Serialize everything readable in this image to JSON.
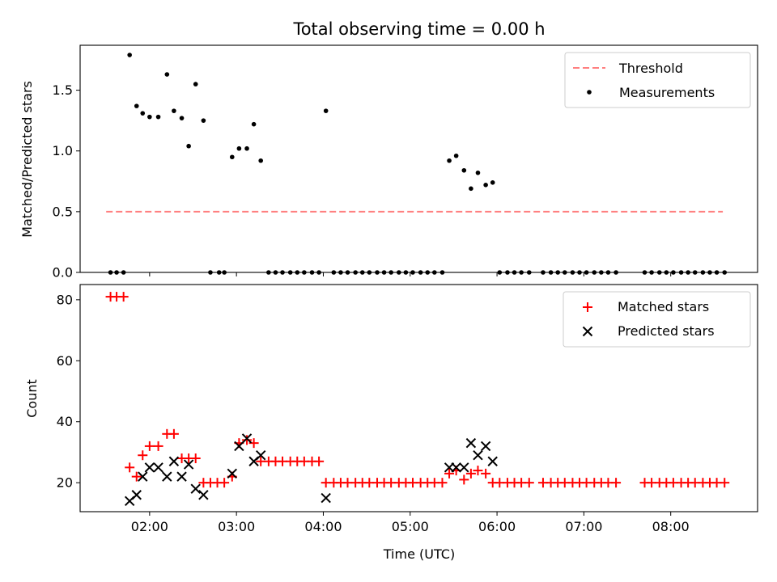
{
  "chart_data": [
    {
      "type": "scatter",
      "title": "Total observing time = 0.00 h",
      "xlabel": "",
      "ylabel": "Matched/Predicted stars",
      "xlim": [
        1.2,
        9.0
      ],
      "ylim": [
        0.0,
        1.87
      ],
      "y_ticks": [
        0.0,
        0.5,
        1.0,
        1.5
      ],
      "y_tick_labels": [
        "0.0",
        "0.5",
        "1.0",
        "1.5"
      ],
      "legend_position": "top-right",
      "colors": {
        "threshold": "#ff7f7f",
        "measurements": "#000000"
      },
      "series": [
        {
          "name": "Threshold",
          "style": "dashed-line",
          "x": [
            1.5,
            8.6
          ],
          "y": [
            0.5,
            0.5
          ]
        },
        {
          "name": "Measurements",
          "style": "dot",
          "points": [
            [
              1.55,
              0.0
            ],
            [
              1.62,
              0.0
            ],
            [
              1.7,
              0.0
            ],
            [
              1.77,
              1.79
            ],
            [
              1.85,
              1.37
            ],
            [
              1.92,
              1.31
            ],
            [
              2.0,
              1.28
            ],
            [
              2.1,
              1.28
            ],
            [
              2.2,
              1.63
            ],
            [
              2.28,
              1.33
            ],
            [
              2.37,
              1.27
            ],
            [
              2.45,
              1.04
            ],
            [
              2.53,
              1.55
            ],
            [
              2.62,
              1.25
            ],
            [
              2.7,
              0.0
            ],
            [
              2.8,
              0.0
            ],
            [
              2.86,
              0.0
            ],
            [
              2.95,
              0.95
            ],
            [
              3.03,
              1.02
            ],
            [
              3.12,
              1.02
            ],
            [
              3.2,
              1.22
            ],
            [
              3.28,
              0.92
            ],
            [
              3.37,
              0.0
            ],
            [
              3.45,
              0.0
            ],
            [
              3.53,
              0.0
            ],
            [
              3.62,
              0.0
            ],
            [
              3.7,
              0.0
            ],
            [
              3.78,
              0.0
            ],
            [
              3.87,
              0.0
            ],
            [
              3.95,
              0.0
            ],
            [
              4.03,
              1.33
            ],
            [
              4.12,
              0.0
            ],
            [
              4.2,
              0.0
            ],
            [
              4.28,
              0.0
            ],
            [
              4.37,
              0.0
            ],
            [
              4.45,
              0.0
            ],
            [
              4.53,
              0.0
            ],
            [
              4.62,
              0.0
            ],
            [
              4.7,
              0.0
            ],
            [
              4.78,
              0.0
            ],
            [
              4.87,
              0.0
            ],
            [
              4.95,
              0.0
            ],
            [
              5.03,
              0.0
            ],
            [
              5.12,
              0.0
            ],
            [
              5.2,
              0.0
            ],
            [
              5.28,
              0.0
            ],
            [
              5.37,
              0.0
            ],
            [
              5.45,
              0.92
            ],
            [
              5.53,
              0.96
            ],
            [
              5.62,
              0.84
            ],
            [
              5.7,
              0.69
            ],
            [
              5.78,
              0.82
            ],
            [
              5.87,
              0.72
            ],
            [
              5.95,
              0.74
            ],
            [
              6.03,
              0.0
            ],
            [
              6.12,
              0.0
            ],
            [
              6.2,
              0.0
            ],
            [
              6.28,
              0.0
            ],
            [
              6.37,
              0.0
            ],
            [
              6.53,
              0.0
            ],
            [
              6.62,
              0.0
            ],
            [
              6.7,
              0.0
            ],
            [
              6.78,
              0.0
            ],
            [
              6.87,
              0.0
            ],
            [
              6.95,
              0.0
            ],
            [
              7.03,
              0.0
            ],
            [
              7.12,
              0.0
            ],
            [
              7.2,
              0.0
            ],
            [
              7.28,
              0.0
            ],
            [
              7.37,
              0.0
            ],
            [
              7.7,
              0.0
            ],
            [
              7.78,
              0.0
            ],
            [
              7.87,
              0.0
            ],
            [
              7.95,
              0.0
            ],
            [
              8.03,
              0.0
            ],
            [
              8.12,
              0.0
            ],
            [
              8.2,
              0.0
            ],
            [
              8.28,
              0.0
            ],
            [
              8.37,
              0.0
            ],
            [
              8.45,
              0.0
            ],
            [
              8.53,
              0.0
            ],
            [
              8.62,
              0.0
            ]
          ]
        }
      ]
    },
    {
      "type": "scatter",
      "title": "",
      "xlabel": "Time (UTC)",
      "ylabel": "Count",
      "xlim": [
        1.2,
        9.0
      ],
      "ylim": [
        10.5,
        85.0
      ],
      "x_ticks": [
        2,
        3,
        4,
        5,
        6,
        7,
        8
      ],
      "x_tick_labels": [
        "02:00",
        "03:00",
        "04:00",
        "05:00",
        "06:00",
        "07:00",
        "08:00"
      ],
      "y_ticks": [
        20,
        40,
        60,
        80
      ],
      "y_tick_labels": [
        "20",
        "40",
        "60",
        "80"
      ],
      "legend_position": "top-right",
      "colors": {
        "matched": "#ff0000",
        "predicted": "#000000"
      },
      "series": [
        {
          "name": "Matched stars",
          "marker": "+",
          "points": [
            [
              1.55,
              81
            ],
            [
              1.62,
              81
            ],
            [
              1.7,
              81
            ],
            [
              1.77,
              25
            ],
            [
              1.85,
              22
            ],
            [
              1.92,
              29
            ],
            [
              2.0,
              32
            ],
            [
              2.1,
              32
            ],
            [
              2.2,
              36
            ],
            [
              2.28,
              36
            ],
            [
              2.37,
              28
            ],
            [
              2.45,
              28
            ],
            [
              2.53,
              28
            ],
            [
              2.62,
              20
            ],
            [
              2.7,
              20
            ],
            [
              2.78,
              20
            ],
            [
              2.86,
              20
            ],
            [
              2.95,
              22
            ],
            [
              3.03,
              33
            ],
            [
              3.12,
              34
            ],
            [
              3.2,
              33
            ],
            [
              3.28,
              27
            ],
            [
              3.37,
              27
            ],
            [
              3.45,
              27
            ],
            [
              3.53,
              27
            ],
            [
              3.62,
              27
            ],
            [
              3.7,
              27
            ],
            [
              3.78,
              27
            ],
            [
              3.87,
              27
            ],
            [
              3.95,
              27
            ],
            [
              4.03,
              20
            ],
            [
              4.12,
              20
            ],
            [
              4.2,
              20
            ],
            [
              4.28,
              20
            ],
            [
              4.37,
              20
            ],
            [
              4.45,
              20
            ],
            [
              4.53,
              20
            ],
            [
              4.62,
              20
            ],
            [
              4.7,
              20
            ],
            [
              4.78,
              20
            ],
            [
              4.87,
              20
            ],
            [
              4.95,
              20
            ],
            [
              5.03,
              20
            ],
            [
              5.12,
              20
            ],
            [
              5.2,
              20
            ],
            [
              5.28,
              20
            ],
            [
              5.37,
              20
            ],
            [
              5.45,
              23
            ],
            [
              5.53,
              24
            ],
            [
              5.62,
              21
            ],
            [
              5.7,
              23
            ],
            [
              5.78,
              24
            ],
            [
              5.87,
              23
            ],
            [
              5.95,
              20
            ],
            [
              6.03,
              20
            ],
            [
              6.12,
              20
            ],
            [
              6.2,
              20
            ],
            [
              6.28,
              20
            ],
            [
              6.37,
              20
            ],
            [
              6.53,
              20
            ],
            [
              6.62,
              20
            ],
            [
              6.7,
              20
            ],
            [
              6.78,
              20
            ],
            [
              6.87,
              20
            ],
            [
              6.95,
              20
            ],
            [
              7.03,
              20
            ],
            [
              7.12,
              20
            ],
            [
              7.2,
              20
            ],
            [
              7.28,
              20
            ],
            [
              7.37,
              20
            ],
            [
              7.7,
              20
            ],
            [
              7.78,
              20
            ],
            [
              7.87,
              20
            ],
            [
              7.95,
              20
            ],
            [
              8.03,
              20
            ],
            [
              8.12,
              20
            ],
            [
              8.2,
              20
            ],
            [
              8.28,
              20
            ],
            [
              8.37,
              20
            ],
            [
              8.45,
              20
            ],
            [
              8.53,
              20
            ],
            [
              8.62,
              20
            ]
          ]
        },
        {
          "name": "Predicted stars",
          "marker": "x",
          "points": [
            [
              1.77,
              14
            ],
            [
              1.85,
              16
            ],
            [
              1.92,
              22
            ],
            [
              2.0,
              25
            ],
            [
              2.1,
              25
            ],
            [
              2.2,
              22
            ],
            [
              2.28,
              27
            ],
            [
              2.37,
              22
            ],
            [
              2.45,
              26
            ],
            [
              2.53,
              18
            ],
            [
              2.62,
              16
            ],
            [
              2.95,
              23
            ],
            [
              3.03,
              32
            ],
            [
              3.12,
              34.5
            ],
            [
              3.2,
              27
            ],
            [
              3.28,
              29
            ],
            [
              4.03,
              15
            ],
            [
              5.45,
              25
            ],
            [
              5.53,
              25
            ],
            [
              5.62,
              25
            ],
            [
              5.7,
              33
            ],
            [
              5.78,
              29
            ],
            [
              5.87,
              32
            ],
            [
              5.95,
              27
            ]
          ]
        }
      ]
    }
  ]
}
